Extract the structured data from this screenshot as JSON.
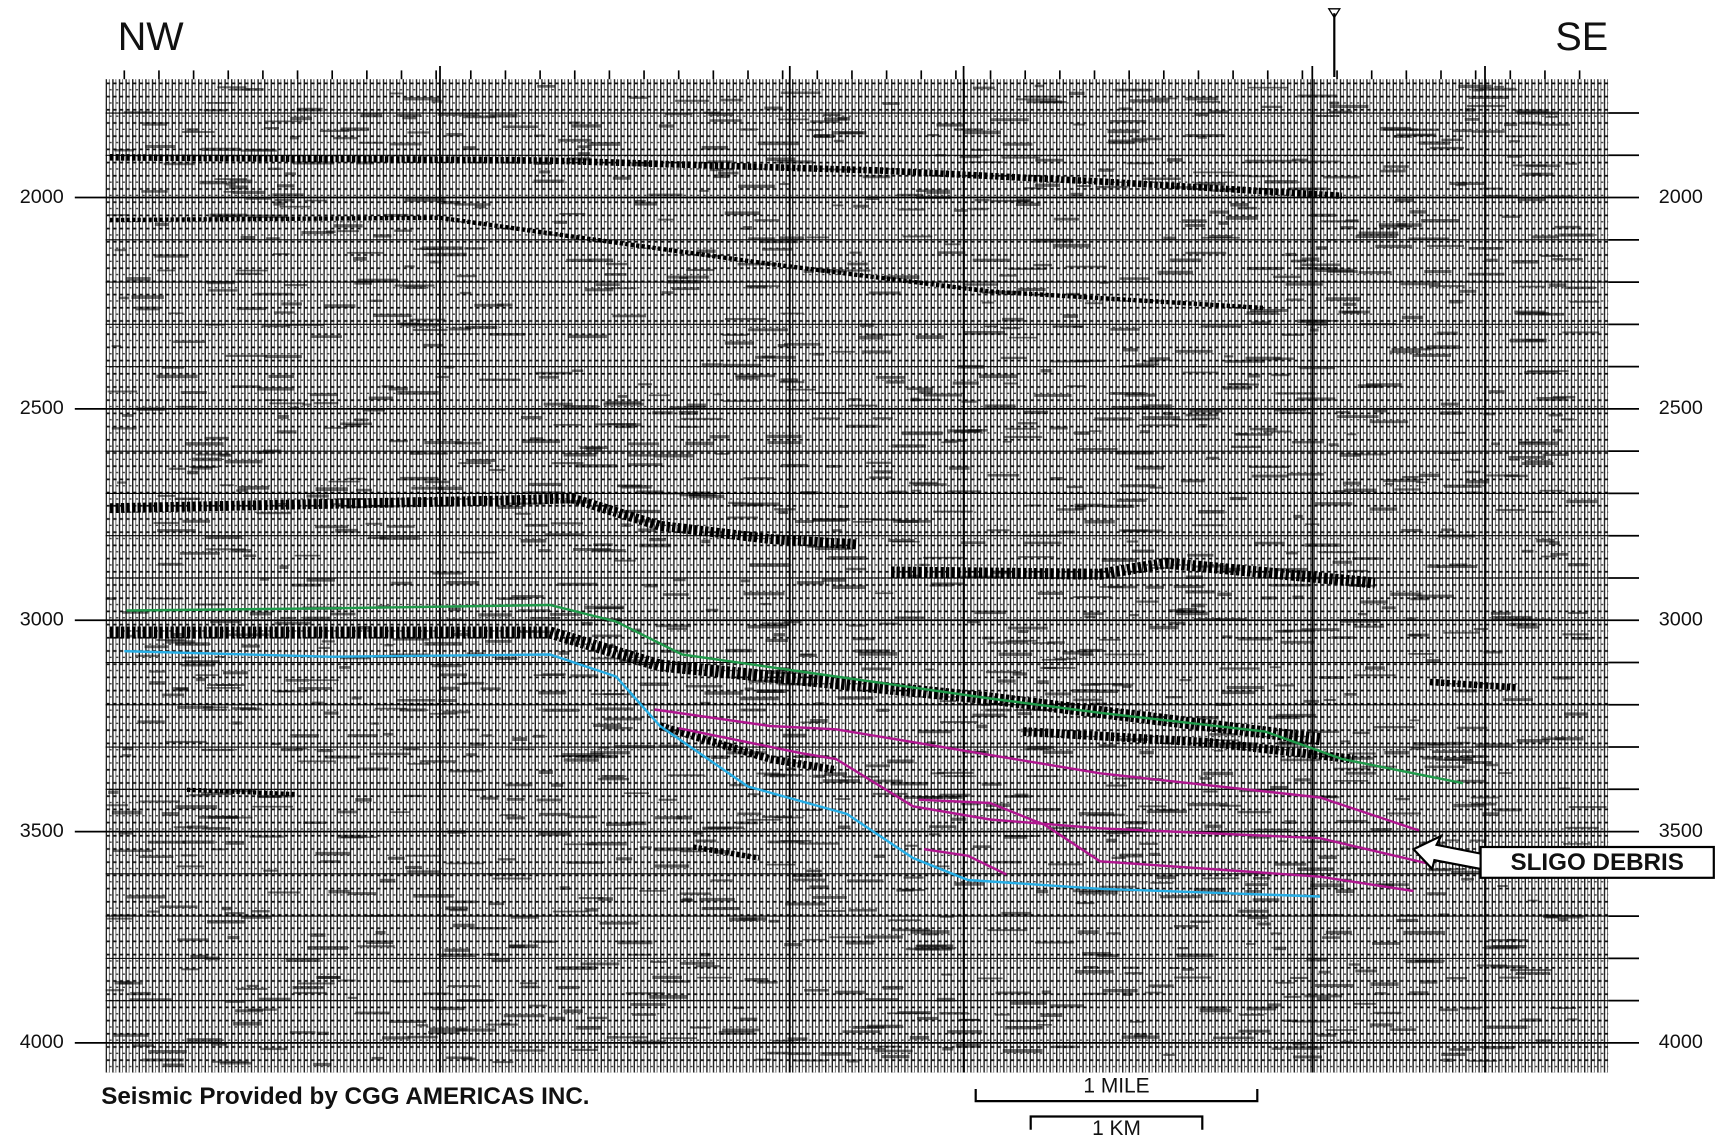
{
  "title_left": "NW",
  "title_right": "SE",
  "depth_axis": {
    "ylim": [
      1720,
      4070
    ],
    "ticks": [
      2000,
      2500,
      3000,
      3500,
      4000
    ]
  },
  "annotation": "SLIGO DEBRIS",
  "credit": "Seismic Provided by CGG AMERICAS INC.",
  "scale_bar": {
    "mile": "1 MILE",
    "km": "1 KM"
  }
}
